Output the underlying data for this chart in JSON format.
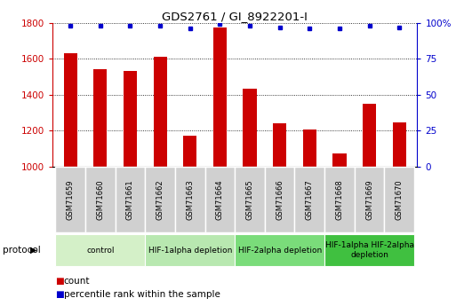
{
  "title": "GDS2761 / GI_8922201-I",
  "samples": [
    "GSM71659",
    "GSM71660",
    "GSM71661",
    "GSM71662",
    "GSM71663",
    "GSM71664",
    "GSM71665",
    "GSM71666",
    "GSM71667",
    "GSM71668",
    "GSM71669",
    "GSM71670"
  ],
  "counts": [
    1630,
    1545,
    1535,
    1610,
    1175,
    1775,
    1435,
    1240,
    1205,
    1075,
    1350,
    1245
  ],
  "percentile_ranks": [
    98,
    98,
    98,
    98,
    96,
    99,
    98,
    97,
    96,
    96,
    98,
    97
  ],
  "bar_color": "#cc0000",
  "dot_color": "#0000cc",
  "ylim_left": [
    1000,
    1800
  ],
  "ylim_right": [
    0,
    100
  ],
  "yticks_left": [
    1000,
    1200,
    1400,
    1600,
    1800
  ],
  "yticks_right": [
    0,
    25,
    50,
    75,
    100
  ],
  "groups": [
    {
      "label": "control",
      "start": 0,
      "end": 3,
      "color": "#d4f0c8"
    },
    {
      "label": "HIF-1alpha depletion",
      "start": 3,
      "end": 6,
      "color": "#b8e8b0"
    },
    {
      "label": "HIF-2alpha depletion",
      "start": 6,
      "end": 9,
      "color": "#7adc7a"
    },
    {
      "label": "HIF-1alpha HIF-2alpha\ndepletion",
      "start": 9,
      "end": 12,
      "color": "#40c040"
    }
  ],
  "protocol_label": "protocol",
  "legend_count_label": "count",
  "legend_percentile_label": "percentile rank within the sample",
  "tick_label_color": "#cc0000",
  "right_tick_color": "#0000cc",
  "sample_bg_color": "#d0d0d0",
  "sample_border_color": "#ffffff",
  "bar_width": 0.45
}
